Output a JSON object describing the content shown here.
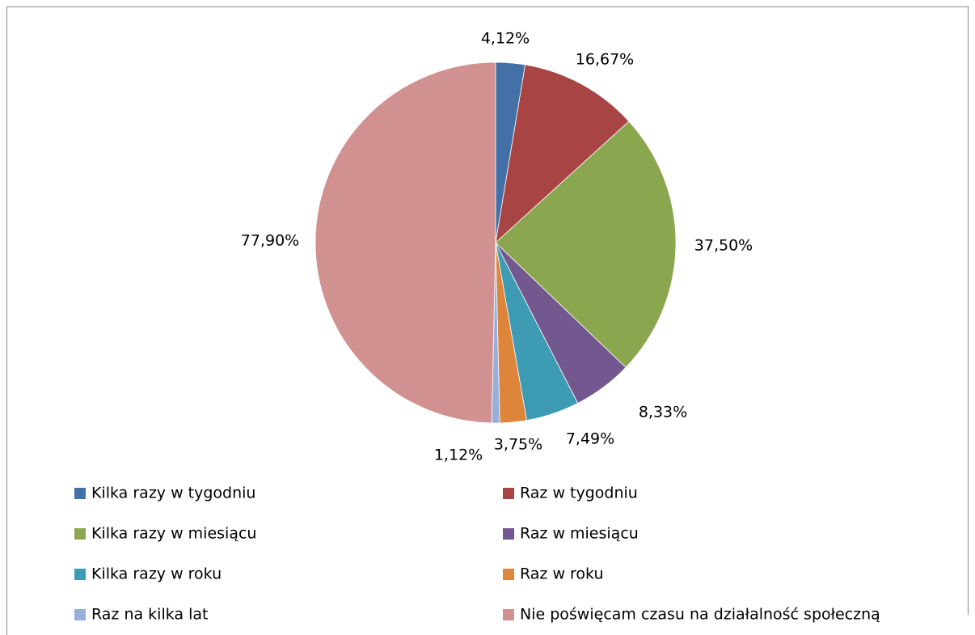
{
  "chart_data": {
    "type": "pie",
    "categories": [
      "Kilka razy w tygodniu",
      "Raz w tygodniu",
      "Kilka razy w miesiącu",
      "Raz w miesiącu",
      "Kilka razy w roku",
      "Raz w roku",
      "Raz na kilka lat",
      "Nie poświęcam czasu na działalność społeczną"
    ],
    "values": [
      4.12,
      16.67,
      37.5,
      8.33,
      7.49,
      3.75,
      1.12,
      77.9
    ],
    "value_labels": [
      "4,12%",
      "16,67%",
      "37,50%",
      "8,33%",
      "7,49%",
      "3,75%",
      "1,12%",
      "77,90%"
    ],
    "colors": [
      "#4470a8",
      "#a84544",
      "#8aa64f",
      "#73578f",
      "#3d9cb3",
      "#dd853b",
      "#98aedb",
      "#d19190"
    ],
    "legend": "bottom"
  }
}
